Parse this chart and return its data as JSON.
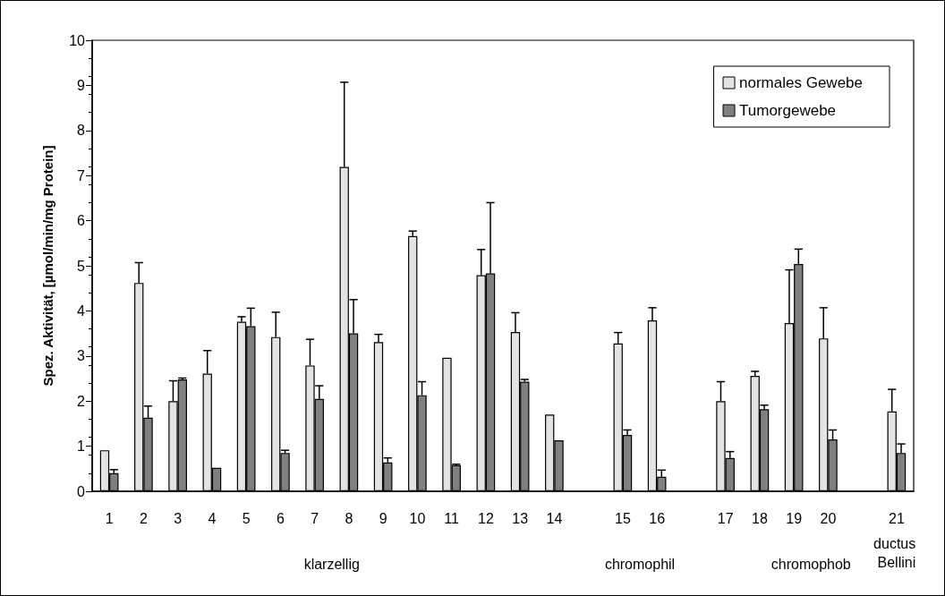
{
  "chart_data": {
    "type": "bar",
    "ylabel": "Spez. Aktivität, [µmol/min/mg Protein]",
    "categories": [
      "1",
      "2",
      "3",
      "4",
      "5",
      "6",
      "7",
      "8",
      "9",
      "10",
      "11",
      "12",
      "13",
      "14",
      null,
      "15",
      "16",
      null,
      "17",
      "18",
      "19",
      "20",
      null,
      "21"
    ],
    "series": [
      {
        "name": "normales Gewebe",
        "color": "#e3e3e3",
        "values": [
          0.91,
          4.62,
          2.0,
          2.61,
          3.76,
          3.42,
          2.79,
          7.19,
          3.31,
          5.66,
          2.96,
          4.79,
          3.53,
          1.7,
          null,
          3.28,
          3.79,
          null,
          2.0,
          2.56,
          3.73,
          3.39,
          null,
          1.77
        ],
        "errors": [
          null,
          [
            4.62,
            5.07
          ],
          [
            2.0,
            2.45
          ],
          [
            2.61,
            3.12
          ],
          [
            3.76,
            3.87
          ],
          [
            3.42,
            3.97
          ],
          [
            2.79,
            3.37
          ],
          [
            7.19,
            9.07
          ],
          [
            3.31,
            3.48
          ],
          [
            5.66,
            5.77
          ],
          null,
          [
            4.79,
            5.36
          ],
          [
            3.53,
            3.96
          ],
          null,
          null,
          [
            3.28,
            3.52
          ],
          [
            3.79,
            4.07
          ],
          null,
          [
            2.0,
            2.43
          ],
          [
            2.56,
            2.66
          ],
          [
            3.73,
            4.91
          ],
          [
            3.39,
            4.07
          ],
          null,
          [
            1.77,
            2.26
          ]
        ]
      },
      {
        "name": "Tumorgewebe",
        "color": "#808080",
        "values": [
          0.4,
          1.63,
          2.48,
          0.52,
          3.66,
          0.85,
          2.05,
          3.5,
          0.64,
          2.13,
          0.58,
          4.83,
          2.43,
          1.13,
          null,
          1.25,
          0.32,
          null,
          0.74,
          1.82,
          5.04,
          1.15,
          null,
          0.85
        ],
        "errors": [
          [
            0.4,
            0.48
          ],
          [
            1.63,
            1.89
          ],
          [
            2.48,
            2.51
          ],
          null,
          [
            3.66,
            4.06
          ],
          [
            0.85,
            0.91
          ],
          [
            2.05,
            2.34
          ],
          [
            3.5,
            4.25
          ],
          [
            0.64,
            0.74
          ],
          [
            2.13,
            2.43
          ],
          [
            0.58,
            0.6
          ],
          [
            4.83,
            6.4
          ],
          [
            2.43,
            2.48
          ],
          null,
          null,
          [
            1.25,
            1.36
          ],
          [
            0.32,
            0.47
          ],
          null,
          [
            0.74,
            0.88
          ],
          [
            1.82,
            1.91
          ],
          [
            5.04,
            5.37
          ],
          [
            1.15,
            1.36
          ],
          null,
          [
            0.85,
            1.05
          ]
        ]
      }
    ],
    "ylim": [
      0,
      10
    ],
    "yticks": [
      0,
      1,
      2,
      3,
      4,
      5,
      6,
      7,
      8,
      9,
      10
    ],
    "grid": false,
    "legend": "top right",
    "annotations": [
      "klarzellig",
      "chromophil",
      "chromophob",
      "ductus Bellini"
    ]
  }
}
